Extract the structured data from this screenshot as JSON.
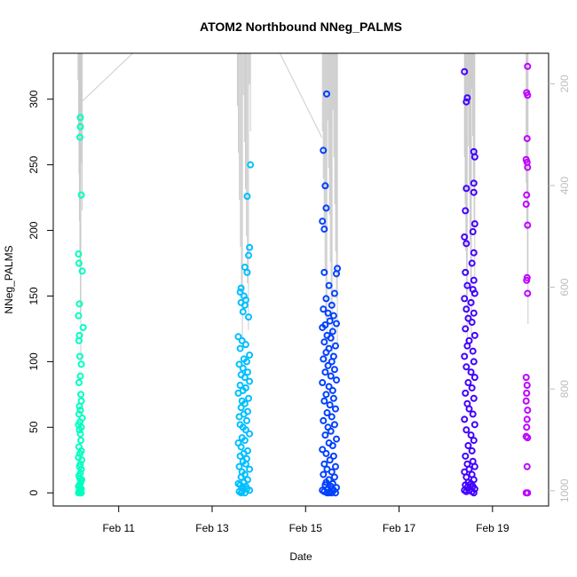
{
  "chart_data": {
    "type": "scatter",
    "title": "ATOM2 Northbound NNeg_PALMS",
    "xlabel": "Date",
    "ylabel": "NNeg_PALMS",
    "x_ticks": [
      "Feb 11",
      "Feb 13",
      "Feb 15",
      "Feb 17",
      "Feb 19"
    ],
    "x_tick_values": [
      11,
      13,
      15,
      17,
      19
    ],
    "xlim": [
      9.6,
      20.2
    ],
    "ylim": [
      -10,
      335
    ],
    "y_ticks": [
      0,
      50,
      100,
      150,
      200,
      250,
      300
    ],
    "right_axis": {
      "ticks": [
        200,
        400,
        600,
        800,
        1000
      ],
      "range_top_to_bottom": [
        140,
        1030
      ],
      "color": "#bdbdbd"
    },
    "grid": false,
    "legend": "none",
    "series": [
      {
        "color": "#00ffbf",
        "x": [
          10.18,
          10.18,
          10.17,
          10.2,
          10.22,
          10.14,
          10.15,
          10.24,
          10.16,
          10.14,
          10.16,
          10.2,
          10.15,
          10.17,
          10.18,
          10.15,
          10.19,
          10.2,
          10.16,
          10.18,
          10.15,
          10.22,
          10.17,
          10.14,
          10.2,
          10.16,
          10.18,
          10.19,
          10.15,
          10.2,
          10.17,
          10.14,
          10.21,
          10.18,
          10.16,
          10.2,
          10.18,
          10.15,
          10.17,
          10.21,
          10.19,
          10.16,
          10.14,
          10.18,
          10.2,
          10.16,
          10.19,
          10.15,
          10.17,
          10.2,
          10.18,
          10.14,
          10.16,
          10.19
        ],
        "y": [
          286,
          279,
          271,
          227,
          169,
          182,
          175,
          126,
          144,
          135,
          120,
          98,
          116,
          104,
          89,
          84,
          75,
          70,
          66,
          63,
          60,
          57,
          54,
          52,
          50,
          48,
          45,
          40,
          35,
          32,
          30,
          27,
          25,
          22,
          20,
          18,
          15,
          13,
          11,
          10,
          8,
          6,
          5,
          4,
          3,
          2,
          2,
          1,
          1,
          0,
          0,
          0,
          0,
          0
        ]
      },
      {
        "color": "#00bfff",
        "x": [
          13.82,
          13.75,
          13.8,
          13.78,
          13.7,
          13.75,
          13.62,
          13.6,
          13.68,
          13.72,
          13.62,
          13.7,
          13.66,
          13.78,
          13.56,
          13.64,
          13.72,
          13.6,
          13.8,
          13.68,
          13.74,
          13.58,
          13.66,
          13.76,
          13.62,
          13.7,
          13.8,
          13.6,
          13.72,
          13.66,
          13.56,
          13.78,
          13.64,
          13.7,
          13.62,
          13.76,
          13.68,
          13.58,
          13.74,
          13.6,
          13.66,
          13.72,
          13.8,
          13.64,
          13.7,
          13.56,
          13.62,
          13.76,
          13.68,
          13.6,
          13.74,
          13.66,
          13.72,
          13.58,
          13.8,
          13.64,
          13.7,
          13.62,
          13.76,
          13.68,
          13.56,
          13.6,
          13.72,
          13.66,
          13.74,
          13.8,
          13.64,
          13.58,
          13.7,
          13.62
        ],
        "y": [
          250,
          226,
          187,
          181,
          172,
          168,
          156,
          153,
          150,
          147,
          145,
          143,
          138,
          134,
          119,
          116,
          113,
          110,
          105,
          102,
          100,
          98,
          95,
          92,
          90,
          88,
          85,
          82,
          80,
          78,
          76,
          72,
          70,
          68,
          65,
          62,
          60,
          58,
          55,
          52,
          50,
          48,
          45,
          42,
          40,
          38,
          35,
          32,
          30,
          28,
          26,
          24,
          22,
          20,
          18,
          16,
          14,
          12,
          10,
          8,
          7,
          6,
          5,
          4,
          3,
          2,
          1,
          1,
          0,
          0
        ]
      },
      {
        "color": "#0040ff",
        "x": [
          15.45,
          15.38,
          15.42,
          15.44,
          15.36,
          15.4,
          15.68,
          15.66,
          15.4,
          15.5,
          15.62,
          15.44,
          15.56,
          15.38,
          15.48,
          15.6,
          15.52,
          15.42,
          15.66,
          15.36,
          15.58,
          15.46,
          15.54,
          15.4,
          15.64,
          15.5,
          15.44,
          15.6,
          15.38,
          15.56,
          15.48,
          15.62,
          15.42,
          15.54,
          15.66,
          15.36,
          15.5,
          15.58,
          15.44,
          15.6,
          15.4,
          15.52,
          15.64,
          15.46,
          15.56,
          15.38,
          15.62,
          15.48,
          15.54,
          15.42,
          15.66,
          15.5,
          15.58,
          15.36,
          15.44,
          15.6,
          15.52,
          15.4,
          15.64,
          15.46,
          15.56,
          15.38,
          15.62,
          15.5,
          15.44,
          15.58,
          15.42,
          15.54,
          15.66,
          15.48,
          15.6,
          15.36,
          15.52,
          15.4,
          15.64,
          15.46,
          15.56,
          15.5
        ],
        "y": [
          304,
          261,
          234,
          217,
          207,
          201,
          171,
          167,
          168,
          158,
          152,
          148,
          143,
          140,
          137,
          135,
          131,
          128,
          129,
          126,
          123,
          120,
          118,
          115,
          112,
          110,
          107,
          104,
          102,
          100,
          97,
          94,
          92,
          89,
          86,
          84,
          81,
          78,
          75,
          72,
          70,
          67,
          64,
          61,
          58,
          55,
          52,
          50,
          47,
          44,
          41,
          38,
          36,
          33,
          30,
          28,
          25,
          22,
          20,
          18,
          16,
          14,
          12,
          10,
          8,
          7,
          6,
          5,
          4,
          3,
          2,
          2,
          1,
          1,
          0,
          0,
          0,
          0
        ]
      },
      {
        "color": "#4000ff",
        "x": [
          18.4,
          18.46,
          18.44,
          18.6,
          18.62,
          18.6,
          18.44,
          18.6,
          18.42,
          18.62,
          18.58,
          18.4,
          18.44,
          18.6,
          18.56,
          18.42,
          18.6,
          18.46,
          18.58,
          18.62,
          18.4,
          18.54,
          18.44,
          18.6,
          18.48,
          18.56,
          18.42,
          18.62,
          18.5,
          18.46,
          18.58,
          18.4,
          18.6,
          18.44,
          18.54,
          18.62,
          18.48,
          18.56,
          18.42,
          18.6,
          18.46,
          18.5,
          18.58,
          18.4,
          18.62,
          18.44,
          18.54,
          18.6,
          18.48,
          18.56,
          18.42,
          18.58,
          18.46,
          18.62,
          18.5,
          18.4,
          18.56,
          18.44,
          18.6,
          18.48,
          18.54,
          18.42,
          18.58,
          18.46,
          18.62,
          18.5,
          18.4,
          18.56,
          18.44,
          18.6
        ],
        "y": [
          321,
          301,
          298,
          260,
          256,
          236,
          232,
          229,
          215,
          205,
          199,
          195,
          190,
          183,
          175,
          168,
          162,
          158,
          155,
          152,
          148,
          145,
          140,
          137,
          133,
          130,
          125,
          120,
          116,
          112,
          108,
          104,
          100,
          96,
          92,
          88,
          84,
          80,
          76,
          72,
          68,
          64,
          60,
          56,
          52,
          48,
          44,
          40,
          36,
          32,
          28,
          24,
          22,
          20,
          18,
          16,
          14,
          12,
          10,
          8,
          7,
          6,
          5,
          4,
          3,
          2,
          2,
          1,
          1,
          0
        ]
      },
      {
        "color": "#bf00ff",
        "x": [
          19.75,
          19.73,
          19.75,
          19.74,
          19.72,
          19.74,
          19.75,
          19.73,
          19.72,
          19.75,
          19.74,
          19.73,
          19.75,
          19.72,
          19.74,
          19.73,
          19.72,
          19.75,
          19.74,
          19.73,
          19.72,
          19.75,
          19.74,
          19.72,
          19.75
        ],
        "y": [
          325,
          305,
          303,
          270,
          254,
          252,
          248,
          227,
          220,
          204,
          164,
          162,
          152,
          88,
          82,
          76,
          70,
          63,
          56,
          50,
          43,
          42,
          20,
          0,
          0
        ]
      }
    ]
  }
}
